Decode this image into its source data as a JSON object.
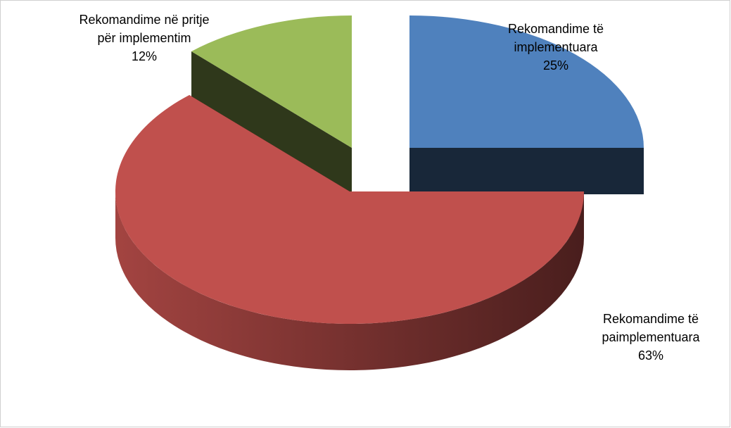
{
  "chart_data": {
    "type": "pie",
    "categories": [
      "Rekomandime të implementuara",
      "Rekomandime të paimplementuara",
      "Rekomandime në pritje për implementim"
    ],
    "values": [
      25,
      63,
      12
    ],
    "value_labels": [
      "25%",
      "63%",
      "12%"
    ],
    "colors": [
      "#4f81bd",
      "#c0504d",
      "#9bbb59"
    ]
  }
}
